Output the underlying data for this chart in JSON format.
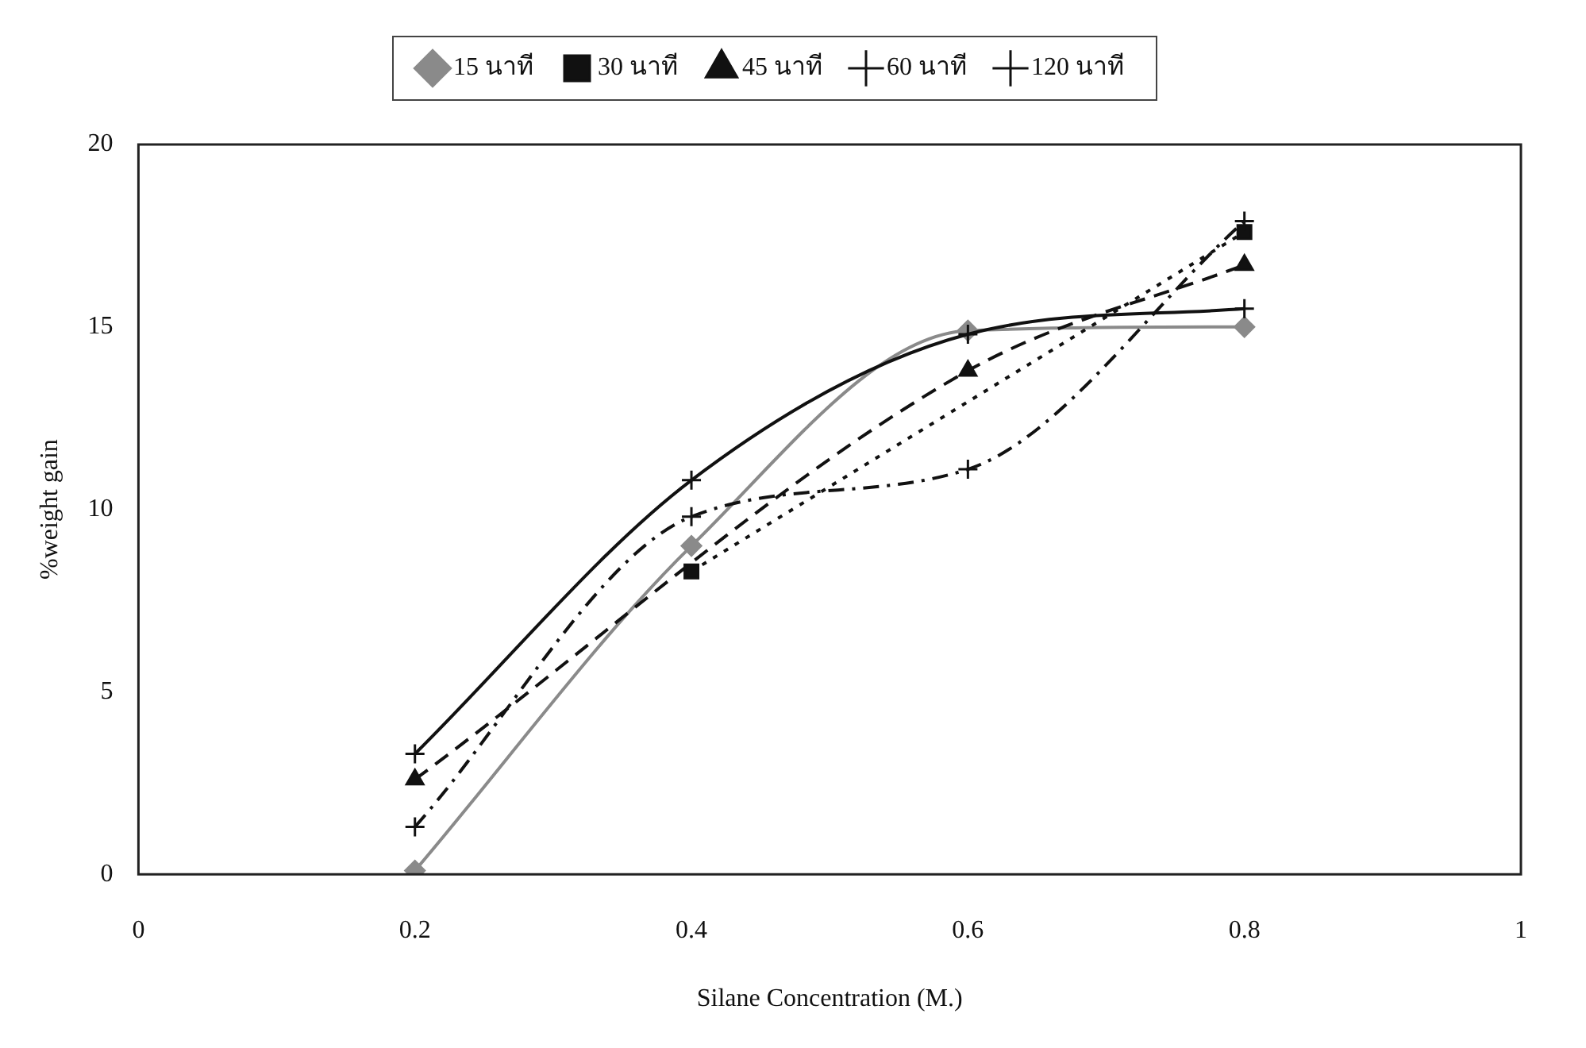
{
  "chart_data": {
    "type": "line",
    "xlabel": "Silane Concentration (M.)",
    "ylabel": "%weight gain",
    "x": [
      0.2,
      0.4,
      0.6,
      0.8
    ],
    "xlim": [
      0,
      1
    ],
    "xticks": [
      0,
      0.2,
      0.4,
      0.6,
      0.8,
      1
    ],
    "ylim": [
      0,
      20
    ],
    "yticks": [
      0,
      5,
      10,
      15,
      20
    ],
    "grid": false,
    "legend": "top",
    "series": [
      {
        "name": "15 นาที",
        "color": "#8a8a8a",
        "marker": "diamond",
        "line_style": "solid",
        "values": [
          0.1,
          9.0,
          14.9,
          15.0
        ]
      },
      {
        "name": "30 นาที",
        "color": "#111111",
        "marker": "square",
        "line_style": "dotted",
        "values": [
          null,
          8.3,
          null,
          17.6
        ]
      },
      {
        "name": "45 นาที",
        "color": "#111111",
        "marker": "triangle",
        "line_style": "dashed",
        "values": [
          2.6,
          null,
          13.8,
          16.7
        ]
      },
      {
        "name": "60 นาที",
        "color": "#111111",
        "marker": "cross",
        "line_style": "dashdot",
        "values": [
          1.3,
          9.8,
          11.1,
          17.9
        ]
      },
      {
        "name": "120 นาที",
        "color": "#111111",
        "marker": "cross",
        "line_style": "solid",
        "values": [
          3.3,
          10.8,
          14.8,
          15.5
        ]
      }
    ]
  }
}
